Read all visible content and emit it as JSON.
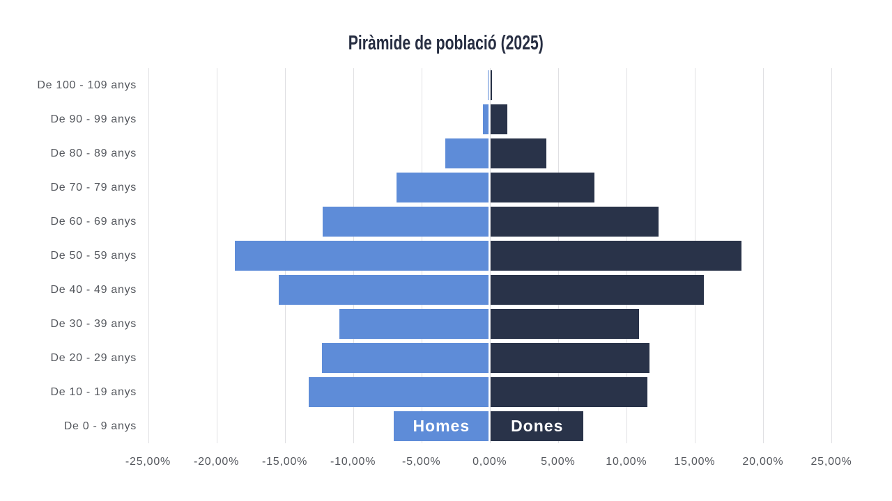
{
  "title": "Piràmide de població (2025)",
  "colors": {
    "background": "#ffffff",
    "title": "#272e42",
    "homes_bar": "#5e8cd8",
    "dones_bar": "#293349",
    "axis_labels": "#54575d",
    "gridlines": "#e0e0e3",
    "series_label_text": "#ffffff"
  },
  "chart_data": {
    "type": "bar",
    "variant": "population-pyramid",
    "orientation": "horizontal",
    "title": "Piràmide de població (2025)",
    "categories": [
      "De 100 - 109 anys",
      "De 90 - 99 anys",
      "De 80 - 89 anys",
      "De 70 - 79 anys",
      "De 60 - 69 anys",
      "De 50 - 59 anys",
      "De 40 - 49 anys",
      "De 30 - 39 anys",
      "De 20 - 29 anys",
      "De 10 - 19 anys",
      "De 0 - 9 anys"
    ],
    "series": [
      {
        "name": "Homes",
        "side": "left",
        "color": "#5e8cd8",
        "values": [
          0.05,
          0.45,
          3.2,
          6.75,
          12.15,
          18.6,
          15.35,
          10.95,
          12.2,
          13.2,
          6.95
        ]
      },
      {
        "name": "Dones",
        "side": "right",
        "color": "#293349",
        "values": [
          0.12,
          1.2,
          4.1,
          7.6,
          12.3,
          18.35,
          15.6,
          10.85,
          11.6,
          11.45,
          6.8
        ]
      }
    ],
    "xlabel": "",
    "ylabel": "",
    "xlim": [
      -25,
      25
    ],
    "x_ticks": [
      -25,
      -20,
      -15,
      -10,
      -5,
      0,
      5,
      10,
      15,
      20,
      25
    ],
    "x_tick_labels": [
      "-25,00%",
      "-20,00%",
      "-15,00%",
      "-10,00%",
      "-5,00%",
      "0,00%",
      "5,00%",
      "10,00%",
      "15,00%",
      "20,00%",
      "25,00%"
    ],
    "grid": true,
    "legend": "series names drawn inside the bottom bars"
  }
}
